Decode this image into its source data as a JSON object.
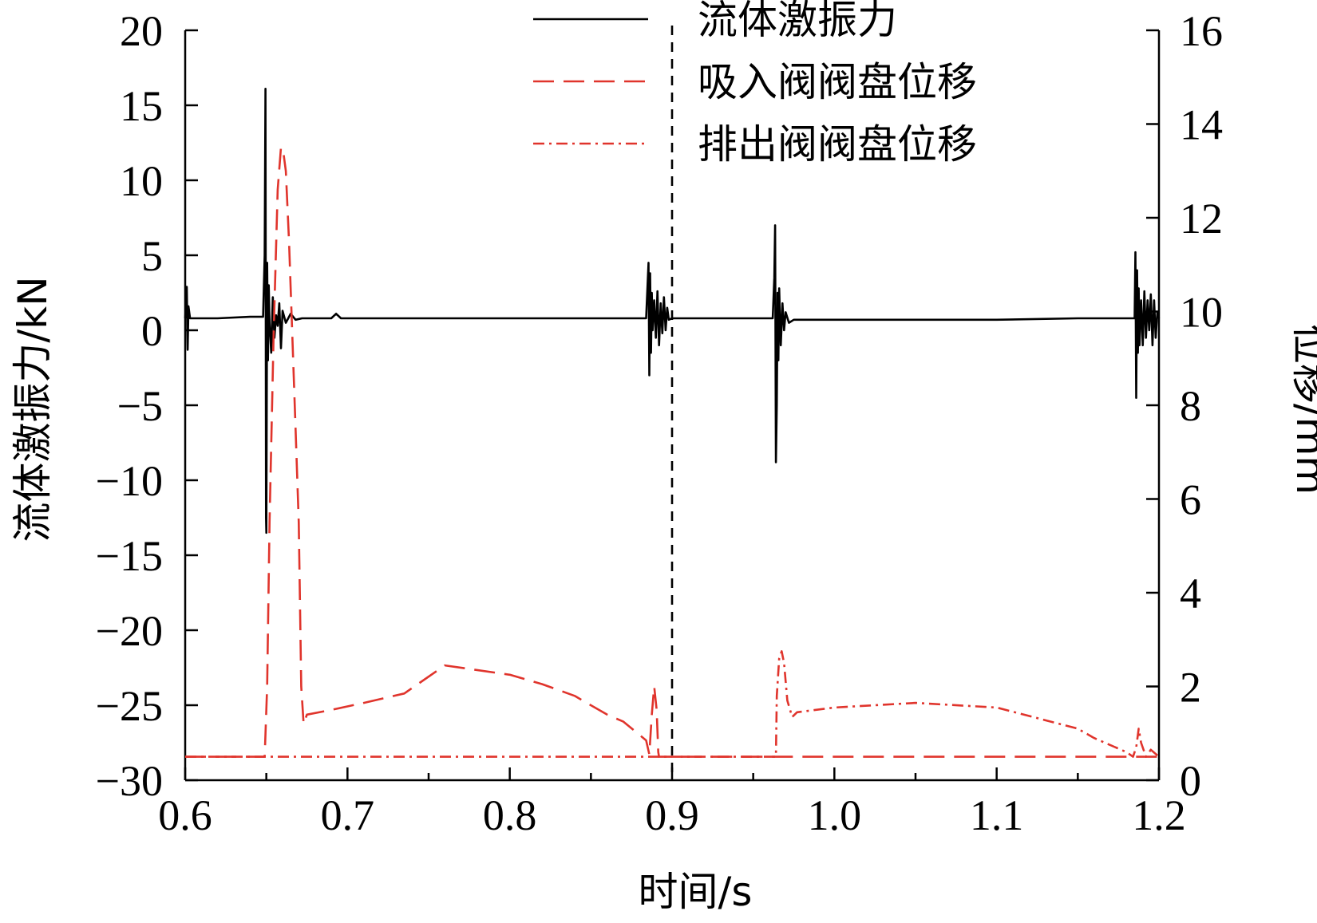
{
  "chart_data": {
    "type": "line",
    "xlabel": "时间/s",
    "ylabel_left": "流体激振力/kN",
    "ylabel_right": "位移/mm",
    "xlim": [
      0.6,
      1.2
    ],
    "ylim_left": [
      -30,
      20
    ],
    "ylim_right": [
      0,
      16
    ],
    "x_ticks": [
      "0.6",
      "0.7",
      "0.8",
      "0.9",
      "1.0",
      "1.1",
      "1.2"
    ],
    "y_left_ticks": [
      "20",
      "15",
      "10",
      "5",
      "0",
      "−5",
      "−10",
      "−15",
      "−20",
      "−25",
      "−30"
    ],
    "y_right_ticks": [
      "16",
      "14",
      "12",
      "10",
      "8",
      "6",
      "4",
      "2",
      "0"
    ],
    "legend_position": "top",
    "vertical_marker_x": 0.9,
    "series": [
      {
        "name": "流体激振力",
        "axis": "left",
        "color": "#000000",
        "style": "solid",
        "x": [
          0.6,
          0.601,
          0.6015,
          0.602,
          0.603,
          0.62,
          0.64,
          0.648,
          0.649,
          0.6495,
          0.6498,
          0.65,
          0.6505,
          0.651,
          0.6515,
          0.652,
          0.653,
          0.654,
          0.655,
          0.656,
          0.657,
          0.658,
          0.659,
          0.66,
          0.662,
          0.665,
          0.668,
          0.672,
          0.69,
          0.693,
          0.696,
          0.75,
          0.8,
          0.85,
          0.884,
          0.8855,
          0.886,
          0.8865,
          0.887,
          0.8875,
          0.888,
          0.889,
          0.89,
          0.891,
          0.892,
          0.893,
          0.894,
          0.895,
          0.896,
          0.897,
          0.898,
          0.9,
          0.92,
          0.95,
          0.962,
          0.963,
          0.9635,
          0.964,
          0.9645,
          0.965,
          0.9655,
          0.966,
          0.967,
          0.968,
          0.969,
          0.97,
          0.972,
          0.975,
          1.0,
          1.05,
          1.1,
          1.15,
          1.185,
          1.1855,
          1.186,
          1.1865,
          1.187,
          1.1875,
          1.188,
          1.189,
          1.19,
          1.191,
          1.192,
          1.193,
          1.194,
          1.195,
          1.196,
          1.197,
          1.198,
          1.199,
          1.2
        ],
        "y": [
          0.8,
          2.9,
          -1.3,
          1.6,
          0.8,
          0.8,
          0.9,
          0.9,
          5.0,
          16.1,
          -12.5,
          -13.5,
          4.5,
          -2.0,
          3.0,
          0.5,
          -1.5,
          2.2,
          -0.5,
          1.0,
          0.3,
          1.8,
          -1.2,
          1.3,
          0.5,
          1.1,
          0.7,
          0.8,
          0.8,
          1.1,
          0.8,
          0.8,
          0.8,
          0.8,
          0.8,
          4.5,
          -3.0,
          3.8,
          -1.5,
          2.5,
          0.0,
          2.0,
          -0.5,
          2.6,
          -1.0,
          1.8,
          -0.2,
          2.2,
          0.0,
          1.5,
          0.7,
          0.8,
          0.8,
          0.8,
          0.8,
          3.5,
          7.0,
          -8.8,
          -5.0,
          2.5,
          -2.0,
          2.8,
          -1.0,
          1.8,
          0.0,
          1.2,
          0.5,
          0.7,
          0.7,
          0.7,
          0.7,
          0.8,
          0.8,
          5.2,
          -4.5,
          4.0,
          -1.5,
          2.8,
          -1.0,
          2.0,
          -1.0,
          2.6,
          -0.5,
          2.0,
          0.0,
          2.4,
          -1.0,
          2.0,
          -0.5,
          1.2,
          0.8
        ]
      },
      {
        "name": "吸入阀阀盘位移",
        "axis": "right",
        "color": "#e0342c",
        "style": "dashed",
        "x": [
          0.6,
          0.649,
          0.6505,
          0.652,
          0.6545,
          0.657,
          0.659,
          0.6605,
          0.662,
          0.664,
          0.666,
          0.668,
          0.67,
          0.6715,
          0.673,
          0.675,
          0.69,
          0.71,
          0.735,
          0.76,
          0.8,
          0.82,
          0.84,
          0.86,
          0.87,
          0.884,
          0.886,
          0.8875,
          0.889,
          0.8905,
          0.8915,
          0.892,
          0.9,
          0.95,
          1.0,
          1.05,
          1.1,
          1.15,
          1.2
        ],
        "y": [
          0.5,
          0.5,
          2.0,
          5.5,
          9.5,
          12.6,
          13.5,
          13.4,
          13.0,
          11.5,
          9.5,
          7.5,
          5.5,
          2.0,
          1.2,
          1.4,
          1.5,
          1.65,
          1.85,
          2.45,
          2.25,
          2.05,
          1.8,
          1.4,
          1.25,
          0.85,
          0.55,
          1.4,
          2.0,
          1.5,
          0.6,
          0.5,
          0.5,
          0.5,
          0.5,
          0.5,
          0.5,
          0.5,
          0.5
        ]
      },
      {
        "name": "排出阀阀盘位移",
        "axis": "right",
        "color": "#e0342c",
        "style": "dashdot",
        "x": [
          0.6,
          0.7,
          0.8,
          0.9,
          0.964,
          0.9645,
          0.966,
          0.9675,
          0.969,
          0.971,
          0.974,
          0.977,
          1.0,
          1.05,
          1.1,
          1.15,
          1.16,
          1.18,
          1.184,
          1.186,
          1.1875,
          1.189,
          1.191,
          1.192,
          1.195,
          1.2
        ],
        "y": [
          0.5,
          0.5,
          0.5,
          0.5,
          0.5,
          1.8,
          2.6,
          2.75,
          2.5,
          1.7,
          1.35,
          1.45,
          1.55,
          1.65,
          1.55,
          1.1,
          0.9,
          0.6,
          0.5,
          0.7,
          1.1,
          0.8,
          0.6,
          0.5,
          0.65,
          0.5
        ]
      }
    ]
  }
}
